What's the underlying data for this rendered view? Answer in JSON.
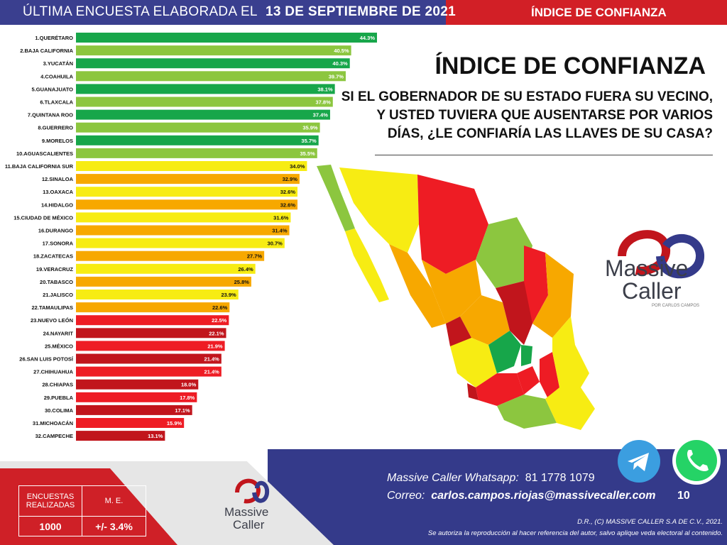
{
  "header": {
    "prefix": "ÚLTIMA ENCUESTA ELABORADA EL",
    "date": "13 DE SEPTIEMBRE DE 2021",
    "right_label": "ÍNDICE DE CONFIANZA"
  },
  "title": "ÍNDICE DE CONFIANZA",
  "question": "SI EL GOBERNADOR DE SU ESTADO FUERA SU VECINO,\nY USTED TUVIERA QUE AUSENTARSE POR VARIOS\nDÍAS, ¿LE CONFIARÍA LAS LLAVES DE SU CASA?",
  "colors": {
    "dark_green": "#17a64a",
    "light_green": "#8cc63f",
    "yellow": "#f7ec13",
    "orange": "#f7a800",
    "red": "#ee1c24",
    "dark_red": "#c1151c",
    "navy": "#343a8a"
  },
  "chart_data": {
    "type": "bar",
    "orientation": "horizontal",
    "categories": [
      "1.QUERÉTARO",
      "2.BAJA CALIFORNIA",
      "3.YUCATÁN",
      "4.COAHUILA",
      "5.GUANAJUATO",
      "6.TLAXCALA",
      "7.QUINTANA ROO",
      "8.GUERRERO",
      "9.MORELOS",
      "10.AGUASCALIENTES",
      "11.BAJA CALIFORNIA SUR",
      "12.SINALOA",
      "13.OAXACA",
      "14.HIDALGO",
      "15.CIUDAD DE MÉXICO",
      "16.DURANGO",
      "17.SONORA",
      "18.ZACATECAS",
      "19.VERACRUZ",
      "20.TABASCO",
      "21.JALISCO",
      "22.TAMAULIPAS",
      "23.NUEVO LEÓN",
      "24.NAYARIT",
      "25.MÉXICO",
      "26.SAN LUIS POTOSÍ",
      "27.CHIHUAHUA",
      "28.CHIAPAS",
      "29.PUEBLA",
      "30.COLIMA",
      "31.MICHOACÁN",
      "32.CAMPECHE"
    ],
    "values": [
      44.3,
      40.5,
      40.3,
      39.7,
      38.1,
      37.8,
      37.4,
      35.9,
      35.7,
      35.5,
      34.0,
      32.9,
      32.6,
      32.6,
      31.6,
      31.4,
      30.7,
      27.7,
      26.4,
      25.8,
      23.9,
      22.6,
      22.5,
      22.1,
      21.9,
      21.4,
      21.4,
      18.0,
      17.8,
      17.1,
      15.9,
      13.1
    ],
    "labels": [
      "44.3%",
      "40.5%",
      "40.3%",
      "39.7%",
      "38.1%",
      "37.8%",
      "37.4%",
      "35.9%",
      "35.7%",
      "35.5%",
      "34.0%",
      "32.9%",
      "32.6%",
      "32.6%",
      "31.6%",
      "31.4%",
      "30.7%",
      "27.7%",
      "26.4%",
      "25.8%",
      "23.9%",
      "22.6%",
      "22.5%",
      "22.1%",
      "21.9%",
      "21.4%",
      "21.4%",
      "18.0%",
      "17.8%",
      "17.1%",
      "15.9%",
      "13.1%"
    ],
    "bar_colors": [
      "#17a64a",
      "#8cc63f",
      "#17a64a",
      "#8cc63f",
      "#17a64a",
      "#8cc63f",
      "#17a64a",
      "#8cc63f",
      "#17a64a",
      "#8cc63f",
      "#f7ec13",
      "#f7a800",
      "#f7ec13",
      "#f7a800",
      "#f7ec13",
      "#f7a800",
      "#f7ec13",
      "#f7a800",
      "#f7ec13",
      "#f7a800",
      "#f7ec13",
      "#f7a800",
      "#ee1c24",
      "#c1151c",
      "#ee1c24",
      "#c1151c",
      "#ee1c24",
      "#c1151c",
      "#ee1c24",
      "#c1151c",
      "#ee1c24",
      "#c1151c"
    ],
    "label_colors": [
      "#ffffff",
      "#ffffff",
      "#ffffff",
      "#ffffff",
      "#ffffff",
      "#ffffff",
      "#ffffff",
      "#ffffff",
      "#ffffff",
      "#ffffff",
      "#111111",
      "#111111",
      "#111111",
      "#111111",
      "#111111",
      "#111111",
      "#111111",
      "#111111",
      "#111111",
      "#111111",
      "#111111",
      "#111111",
      "#ffffff",
      "#ffffff",
      "#ffffff",
      "#ffffff",
      "#ffffff",
      "#ffffff",
      "#ffffff",
      "#ffffff",
      "#ffffff",
      "#ffffff"
    ],
    "xlim": [
      0,
      44.3
    ]
  },
  "logo": {
    "word1": "Massive",
    "word2": "Caller",
    "tagline": "POR CARLOS CAMPOS"
  },
  "survey": {
    "col1_header": "ENCUESTAS REALIZADAS",
    "col2_header": "M. E.",
    "count": "1000",
    "margin": "+/- 3.4%"
  },
  "contact": {
    "whatsapp_label": "Massive Caller Whatsapp:",
    "whatsapp_number": "81 1778 1079",
    "email_label": "Correo:",
    "email": "carlos.campos.riojas@massivecaller.com",
    "page": "10"
  },
  "legal": {
    "rights": "D.R., (C) MASSIVE CALLER S.A DE C.V., 2021.",
    "reproduction": "Se autoriza la reproducción al hacer referencia del autor, salvo aplique veda electoral al contenido."
  },
  "icons": [
    "telegram-icon",
    "whatsapp-icon",
    "massive-caller-logo-icon"
  ]
}
